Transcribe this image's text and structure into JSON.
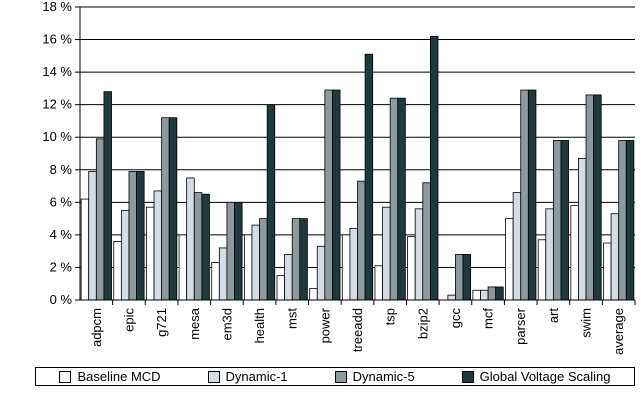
{
  "chart_data": {
    "type": "bar",
    "title": "",
    "xlabel": "",
    "ylabel": "",
    "ylim": [
      0,
      18
    ],
    "y_ticks": [
      "0 %",
      "2 %",
      "4 %",
      "6 %",
      "8 %",
      "10 %",
      "12 %",
      "14 %",
      "16 %",
      "18 %"
    ],
    "grid": "horizontal",
    "legend_position": "bottom",
    "categories": [
      "adpcm",
      "epic",
      "g721",
      "mesa",
      "em3d",
      "health",
      "mst",
      "power",
      "treeadd",
      "tsp",
      "bzip2",
      "gcc",
      "mcf",
      "parser",
      "art",
      "swim",
      "average"
    ],
    "series": [
      {
        "name": "Baseline MCD",
        "color": "#ffffff",
        "values": [
          6.2,
          3.6,
          5.7,
          4.0,
          2.3,
          4.0,
          1.5,
          0.7,
          4.0,
          2.1,
          3.9,
          0.0,
          0.6,
          5.0,
          3.7,
          5.8,
          3.5
        ]
      },
      {
        "name": "Dynamic-1",
        "color": "#d4dde3",
        "values": [
          7.9,
          5.5,
          6.7,
          7.5,
          3.2,
          4.6,
          2.8,
          3.3,
          4.4,
          5.7,
          5.6,
          0.3,
          0.6,
          6.6,
          5.6,
          8.7,
          5.3
        ]
      },
      {
        "name": "Dynamic-5",
        "color": "#8c9a9e",
        "values": [
          9.9,
          7.9,
          11.2,
          6.6,
          6.0,
          5.0,
          5.0,
          12.9,
          7.3,
          12.4,
          7.2,
          2.8,
          0.8,
          12.9,
          9.8,
          12.6,
          9.8
        ]
      },
      {
        "name": "Global Voltage Scaling",
        "color": "#1f3a3d",
        "values": [
          12.8,
          7.9,
          11.2,
          6.5,
          6.0,
          12.0,
          5.0,
          12.9,
          15.1,
          12.4,
          16.2,
          2.8,
          0.8,
          12.9,
          9.8,
          12.6,
          9.8
        ]
      }
    ]
  }
}
